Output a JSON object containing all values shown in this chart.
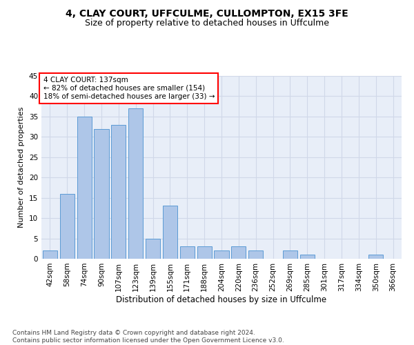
{
  "title1": "4, CLAY COURT, UFFCULME, CULLOMPTON, EX15 3FE",
  "title2": "Size of property relative to detached houses in Uffculme",
  "xlabel": "Distribution of detached houses by size in Uffculme",
  "ylabel": "Number of detached properties",
  "categories": [
    "42sqm",
    "58sqm",
    "74sqm",
    "90sqm",
    "107sqm",
    "123sqm",
    "139sqm",
    "155sqm",
    "171sqm",
    "188sqm",
    "204sqm",
    "220sqm",
    "236sqm",
    "252sqm",
    "269sqm",
    "285sqm",
    "301sqm",
    "317sqm",
    "334sqm",
    "350sqm",
    "366sqm"
  ],
  "values": [
    2,
    16,
    35,
    32,
    33,
    37,
    5,
    13,
    3,
    3,
    2,
    3,
    2,
    0,
    2,
    1,
    0,
    0,
    0,
    1,
    0
  ],
  "bar_color": "#aec6e8",
  "bar_edge_color": "#5b9bd5",
  "annotation_text": "4 CLAY COURT: 137sqm\n← 82% of detached houses are smaller (154)\n18% of semi-detached houses are larger (33) →",
  "annotation_box_color": "white",
  "annotation_box_edge_color": "red",
  "ylim": [
    0,
    45
  ],
  "yticks": [
    0,
    5,
    10,
    15,
    20,
    25,
    30,
    35,
    40,
    45
  ],
  "grid_color": "#d0d8e8",
  "background_color": "#e8eef8",
  "footer": "Contains HM Land Registry data © Crown copyright and database right 2024.\nContains public sector information licensed under the Open Government Licence v3.0.",
  "title1_fontsize": 10,
  "title2_fontsize": 9,
  "xlabel_fontsize": 8.5,
  "ylabel_fontsize": 8,
  "tick_fontsize": 7.5,
  "annotation_fontsize": 7.5,
  "footer_fontsize": 6.5
}
